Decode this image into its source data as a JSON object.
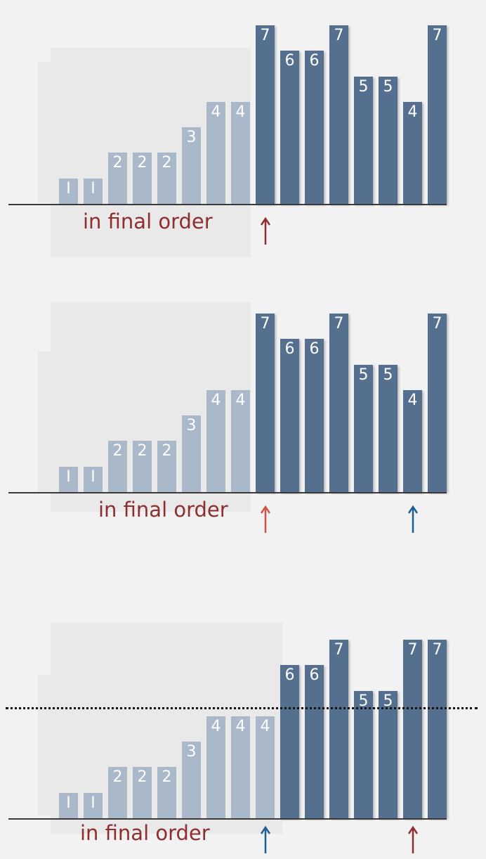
{
  "colors": {
    "sorted_bar": "#aab9ca",
    "unsorted_bar": "#55708f",
    "caption": "#8e2e2e",
    "red_arrow": "#8e2e2e",
    "light_red_arrow": "#d2524b",
    "blue_arrow": "#1d5e91",
    "baseline": "#3a3a3a"
  },
  "panels": [
    {
      "caption": "in final order",
      "values": [
        1,
        1,
        2,
        2,
        2,
        3,
        4,
        4,
        7,
        6,
        6,
        7,
        5,
        5,
        4,
        7
      ],
      "labels": [
        "I",
        "I",
        "2",
        "2",
        "2",
        "3",
        "4",
        "4",
        "7",
        "6",
        "6",
        "7",
        "5",
        "5",
        "4",
        "7"
      ],
      "sorted_count": 8,
      "arrows": [
        {
          "at_bar": 8,
          "color_key": "red_arrow",
          "icon": "up-arrow-icon"
        }
      ],
      "dotted_line": false
    },
    {
      "caption": "in final order",
      "values": [
        1,
        1,
        2,
        2,
        2,
        3,
        4,
        4,
        7,
        6,
        6,
        7,
        5,
        5,
        4,
        7
      ],
      "labels": [
        "I",
        "I",
        "2",
        "2",
        "2",
        "3",
        "4",
        "4",
        "7",
        "6",
        "6",
        "7",
        "5",
        "5",
        "4",
        "7"
      ],
      "sorted_count": 8,
      "arrows": [
        {
          "at_bar": 8,
          "color_key": "light_red_arrow",
          "icon": "up-arrow-icon"
        },
        {
          "at_bar": 14,
          "color_key": "blue_arrow",
          "icon": "up-arrow-icon"
        }
      ],
      "dotted_line": false
    },
    {
      "caption": "in final order",
      "values": [
        1,
        1,
        2,
        2,
        2,
        3,
        4,
        4,
        4,
        6,
        6,
        7,
        5,
        5,
        7,
        7
      ],
      "labels": [
        "I",
        "I",
        "2",
        "2",
        "2",
        "3",
        "4",
        "4",
        "4",
        "6",
        "6",
        "7",
        "5",
        "5",
        "7",
        "7"
      ],
      "sorted_count": 9,
      "arrows": [
        {
          "at_bar": 8,
          "color_key": "blue_arrow",
          "icon": "up-arrow-icon"
        },
        {
          "at_bar": 14,
          "color_key": "red_arrow",
          "icon": "up-arrow-icon"
        }
      ],
      "dotted_line": true,
      "dotted_line_value": 4.35
    }
  ]
}
